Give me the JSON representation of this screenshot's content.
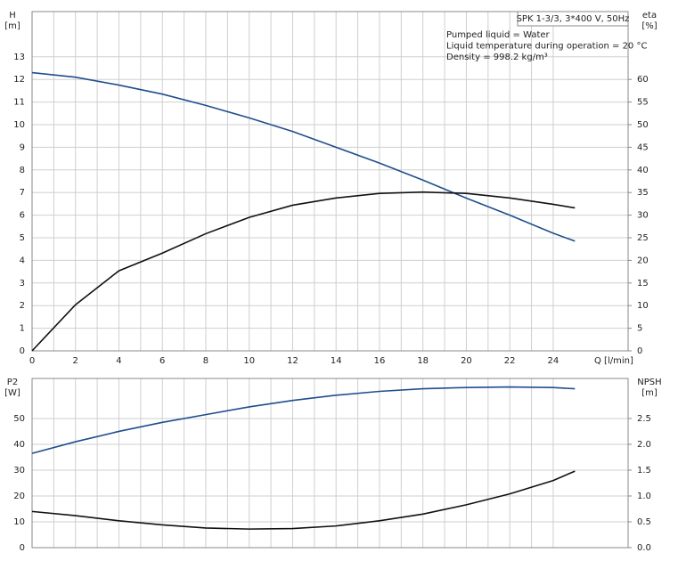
{
  "chart_data": [
    {
      "type": "line",
      "y_label": "H",
      "y_unit": "[m]",
      "y2_label": "eta",
      "y2_unit": "[%]",
      "x_label": "Q [l/min]",
      "info_box": "SPK 1-3/3, 3*400 V, 50Hz",
      "annotations": [
        "Pumped liquid = Water",
        "Liquid temperature during operation = 20 °C",
        "Density = 998.2 kg/m³"
      ],
      "x": [
        0,
        2,
        4,
        6,
        8,
        10,
        12,
        14,
        16,
        18,
        20,
        22,
        24,
        25
      ],
      "series": [
        {
          "color": "#1f4e8c",
          "axis": "y",
          "values": [
            12.3,
            12.1,
            11.75,
            11.35,
            10.85,
            10.3,
            9.7,
            9.0,
            8.3,
            7.55,
            6.75,
            6.0,
            5.2,
            4.85
          ]
        },
        {
          "color": "#111111",
          "axis": "y2",
          "values": [
            0,
            10.2,
            17.7,
            21.6,
            25.9,
            29.5,
            32.2,
            33.8,
            34.8,
            35.1,
            34.8,
            33.8,
            32.4,
            31.6
          ]
        }
      ],
      "xlim": [
        0,
        27.45
      ],
      "xticks": [
        0,
        2,
        4,
        6,
        8,
        10,
        12,
        14,
        16,
        18,
        20,
        22,
        24
      ],
      "ylim": [
        0,
        15
      ],
      "yticks": [
        0,
        1,
        2,
        3,
        4,
        5,
        6,
        7,
        8,
        9,
        10,
        11,
        12,
        13
      ],
      "y2lim": [
        0,
        75
      ],
      "y2ticks": [
        0,
        5,
        10,
        15,
        20,
        25,
        30,
        35,
        40,
        45,
        50,
        55,
        60
      ],
      "grid": true
    },
    {
      "type": "line",
      "y_label": "P2",
      "y_unit": "[W]",
      "y2_label": "NPSH",
      "y2_unit": "[m]",
      "x": [
        0,
        2,
        4,
        6,
        8,
        10,
        12,
        14,
        16,
        18,
        20,
        22,
        24,
        25
      ],
      "series": [
        {
          "color": "#1f4e8c",
          "axis": "y",
          "values": [
            36.5,
            41,
            45,
            48.5,
            51.5,
            54.5,
            57,
            59,
            60.5,
            61.5,
            62,
            62.2,
            62,
            61.5
          ]
        },
        {
          "color": "#111111",
          "axis": "y2",
          "values": [
            0.7,
            0.62,
            0.52,
            0.44,
            0.38,
            0.36,
            0.37,
            0.42,
            0.52,
            0.65,
            0.83,
            1.04,
            1.3,
            1.48
          ]
        }
      ],
      "xlim": [
        0,
        27.45
      ],
      "xticks": [
        0,
        2,
        4,
        6,
        8,
        10,
        12,
        14,
        16,
        18,
        20,
        22,
        24
      ],
      "ylim": [
        0,
        65.5
      ],
      "yticks": [
        0,
        10,
        20,
        30,
        40,
        50
      ],
      "y2lim": [
        0,
        3.275
      ],
      "y2ticks": [
        {
          "value": 0,
          "label": "0.0"
        },
        {
          "value": 0.5,
          "label": "0.5"
        },
        {
          "value": 1,
          "label": "1.0"
        },
        {
          "value": 1.5,
          "label": "1.5"
        },
        {
          "value": 2,
          "label": "2.0"
        },
        {
          "value": 2.5,
          "label": "2.5"
        }
      ],
      "grid": true
    }
  ]
}
